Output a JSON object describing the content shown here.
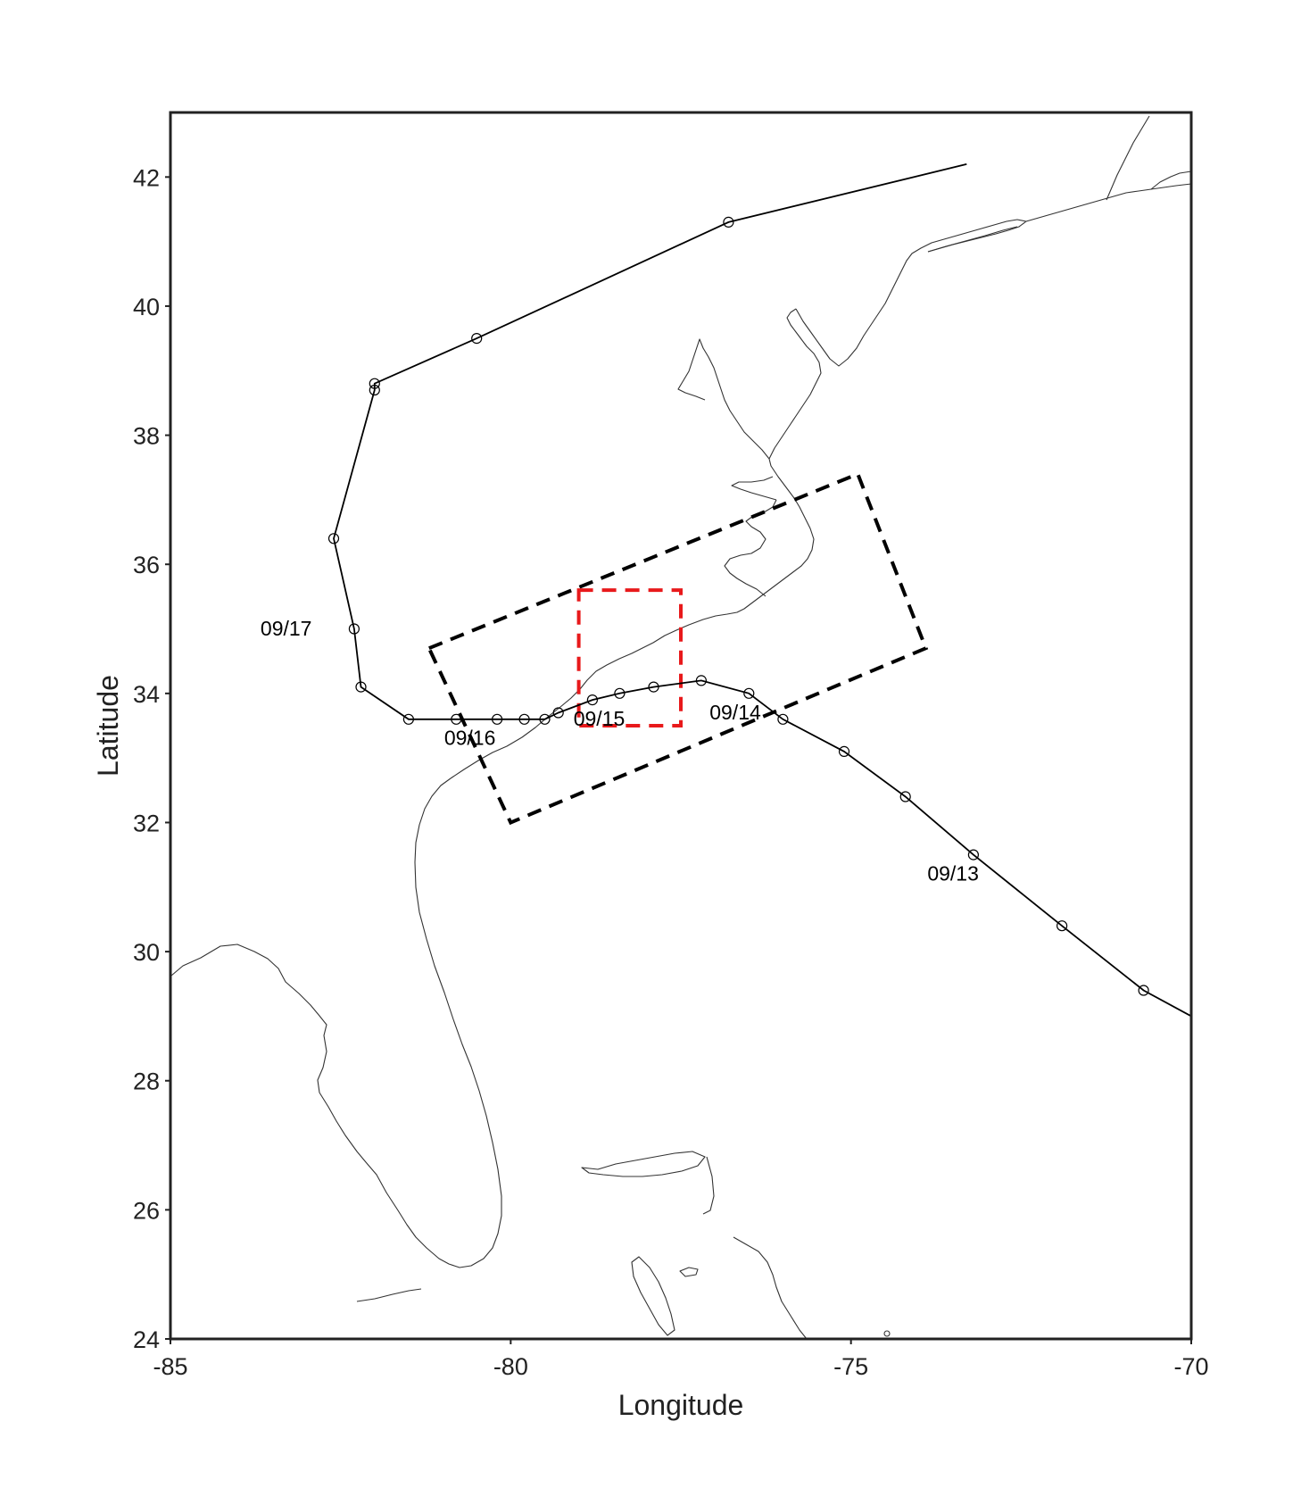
{
  "map": {
    "xlabel": "Longitude",
    "ylabel": "Latitude",
    "xlim": [
      -85,
      -70
    ],
    "ylim": [
      24,
      43
    ],
    "xticks": [
      -85,
      -80,
      -75,
      -70
    ],
    "yticks": [
      24,
      26,
      28,
      30,
      32,
      34,
      36,
      38,
      40,
      42
    ],
    "track": [
      [
        -73.3,
        42.2
      ],
      [
        -76.8,
        41.3
      ],
      [
        -80.5,
        39.5
      ],
      [
        -82.0,
        38.8
      ],
      [
        -82.0,
        38.7
      ],
      [
        -82.6,
        36.4
      ],
      [
        -82.3,
        35.0
      ],
      [
        -82.2,
        34.1
      ],
      [
        -81.5,
        33.6
      ],
      [
        -80.8,
        33.6
      ],
      [
        -80.2,
        33.6
      ],
      [
        -79.8,
        33.6
      ],
      [
        -79.5,
        33.6
      ],
      [
        -79.3,
        33.7
      ],
      [
        -78.8,
        33.9
      ],
      [
        -78.4,
        34.0
      ],
      [
        -77.9,
        34.1
      ],
      [
        -77.2,
        34.2
      ],
      [
        -76.5,
        34.0
      ],
      [
        -76.0,
        33.6
      ],
      [
        -75.1,
        33.1
      ],
      [
        -74.2,
        32.4
      ],
      [
        -73.2,
        31.5
      ],
      [
        -71.9,
        30.4
      ],
      [
        -70.7,
        29.4
      ],
      [
        -70.0,
        29.0
      ]
    ],
    "track_markers_from_index": 1,
    "date_labels": [
      {
        "text": "09/17",
        "lon": -83.3,
        "lat": 34.9
      },
      {
        "text": "09/16",
        "lon": -80.6,
        "lat": 33.2
      },
      {
        "text": "09/15",
        "lon": -78.7,
        "lat": 33.5
      },
      {
        "text": "09/14",
        "lon": -76.7,
        "lat": 33.6
      },
      {
        "text": "09/13",
        "lon": -73.5,
        "lat": 31.1
      }
    ],
    "outer_box": [
      [
        -81.2,
        34.7
      ],
      [
        -74.9,
        37.4
      ],
      [
        -73.9,
        34.7
      ],
      [
        -80.0,
        32.0
      ]
    ],
    "inner_box": [
      [
        -79.0,
        35.6
      ],
      [
        -77.5,
        35.6
      ],
      [
        -77.5,
        33.5
      ],
      [
        -79.0,
        33.5
      ]
    ],
    "colors": {
      "track": "#000000",
      "outer_box": "#000000",
      "inner_box": "#e8191b",
      "coast": "#333333"
    }
  }
}
